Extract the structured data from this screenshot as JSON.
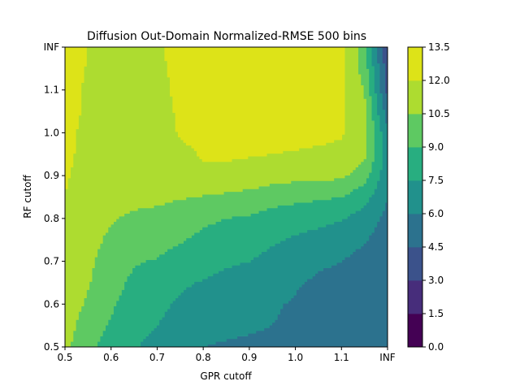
{
  "chart_data": {
    "type": "heatmap",
    "subtype": "filled-contour",
    "title": "Diffusion Out-Domain Normalized-RMSE 500 bins",
    "xlabel": "GPR cutoff",
    "ylabel": "RF cutoff",
    "x_ticks": [
      "0.5",
      "0.6",
      "0.7",
      "0.8",
      "0.9",
      "1.0",
      "1.1",
      "INF"
    ],
    "y_ticks": [
      "0.5",
      "0.6",
      "0.7",
      "0.8",
      "0.9",
      "1.0",
      "1.1",
      "INF"
    ],
    "colorbar": {
      "levels": [
        0.0,
        1.5,
        3.0,
        4.5,
        6.0,
        7.5,
        9.0,
        10.5,
        12.0,
        13.5
      ],
      "tick_labels": [
        "0.0",
        "1.5",
        "3.0",
        "4.5",
        "6.0",
        "7.5",
        "9.0",
        "10.5",
        "12.0",
        "13.5"
      ],
      "colors": [
        "#440154",
        "#472d7b",
        "#3b528b",
        "#2c728e",
        "#21918c",
        "#28ae80",
        "#5ec962",
        "#addc30",
        "#dde318"
      ]
    },
    "grid": false,
    "grid_x": [
      0.5,
      0.55,
      0.6,
      0.65,
      0.7,
      0.75,
      0.8,
      0.85,
      0.9,
      0.95,
      1.0,
      1.05,
      1.1,
      1.15,
      1.2
    ],
    "grid_y": [
      0.5,
      0.55,
      0.6,
      0.65,
      0.7,
      0.75,
      0.8,
      0.85,
      0.9,
      0.95,
      1.0,
      1.05,
      1.1,
      1.15,
      1.2
    ],
    "z": [
      [
        10.8,
        9.5,
        8.2,
        7.6,
        7.0,
        6.6,
        6.0,
        5.8,
        5.7,
        5.6,
        5.5,
        5.4,
        5.3,
        5.1,
        4.8
      ],
      [
        11.0,
        9.9,
        8.8,
        8.0,
        7.5,
        7.0,
        6.6,
        6.4,
        6.2,
        6.0,
        5.8,
        5.6,
        5.5,
        5.2,
        4.8
      ],
      [
        11.2,
        10.3,
        9.2,
        8.3,
        7.8,
        7.3,
        6.9,
        6.6,
        6.4,
        6.1,
        5.9,
        5.7,
        5.5,
        5.2,
        4.8
      ],
      [
        11.4,
        10.6,
        9.5,
        8.7,
        8.2,
        7.7,
        7.4,
        7.1,
        6.8,
        6.5,
        6.1,
        5.8,
        5.6,
        5.3,
        4.8
      ],
      [
        11.6,
        10.8,
        9.8,
        9.1,
        8.9,
        8.4,
        8.0,
        7.7,
        7.5,
        7.0,
        6.6,
        6.2,
        6.0,
        5.5,
        5.0
      ],
      [
        11.8,
        11.0,
        10.2,
        9.8,
        9.5,
        9.1,
        8.7,
        8.5,
        8.2,
        7.7,
        7.3,
        7.0,
        6.7,
        6.1,
        5.2
      ],
      [
        11.9,
        11.2,
        10.6,
        10.3,
        10.1,
        9.7,
        9.2,
        9.0,
        8.8,
        8.4,
        8.1,
        7.9,
        7.6,
        6.8,
        5.6
      ],
      [
        12.0,
        11.4,
        10.9,
        10.8,
        10.8,
        10.6,
        10.4,
        10.2,
        10.0,
        9.6,
        9.4,
        9.2,
        9.0,
        8.0,
        6.0
      ],
      [
        12.1,
        11.6,
        11.2,
        11.1,
        11.2,
        11.4,
        11.8,
        11.6,
        11.4,
        11.1,
        10.9,
        10.8,
        10.8,
        9.6,
        6.4
      ],
      [
        12.2,
        11.7,
        11.3,
        11.2,
        11.3,
        11.7,
        12.1,
        12.2,
        12.1,
        12.0,
        11.9,
        11.8,
        11.7,
        10.8,
        6.8
      ],
      [
        12.3,
        11.7,
        11.4,
        11.3,
        11.4,
        12.1,
        12.4,
        12.5,
        12.5,
        12.5,
        12.4,
        12.3,
        12.1,
        11.0,
        6.2
      ],
      [
        12.4,
        11.8,
        11.5,
        11.4,
        11.5,
        12.2,
        12.5,
        12.6,
        12.6,
        12.6,
        12.5,
        12.4,
        12.2,
        10.8,
        5.0
      ],
      [
        12.5,
        11.8,
        11.6,
        11.5,
        11.6,
        12.3,
        12.6,
        12.7,
        12.7,
        12.7,
        12.6,
        12.5,
        12.2,
        10.4,
        4.0
      ],
      [
        12.6,
        11.9,
        11.7,
        11.6,
        11.7,
        12.4,
        12.7,
        12.8,
        12.8,
        12.8,
        12.7,
        12.6,
        12.3,
        9.8,
        3.5
      ],
      [
        12.7,
        12.0,
        11.8,
        11.7,
        11.8,
        12.5,
        12.8,
        12.9,
        12.9,
        12.9,
        12.8,
        12.7,
        12.4,
        9.5,
        3.0
      ]
    ]
  }
}
